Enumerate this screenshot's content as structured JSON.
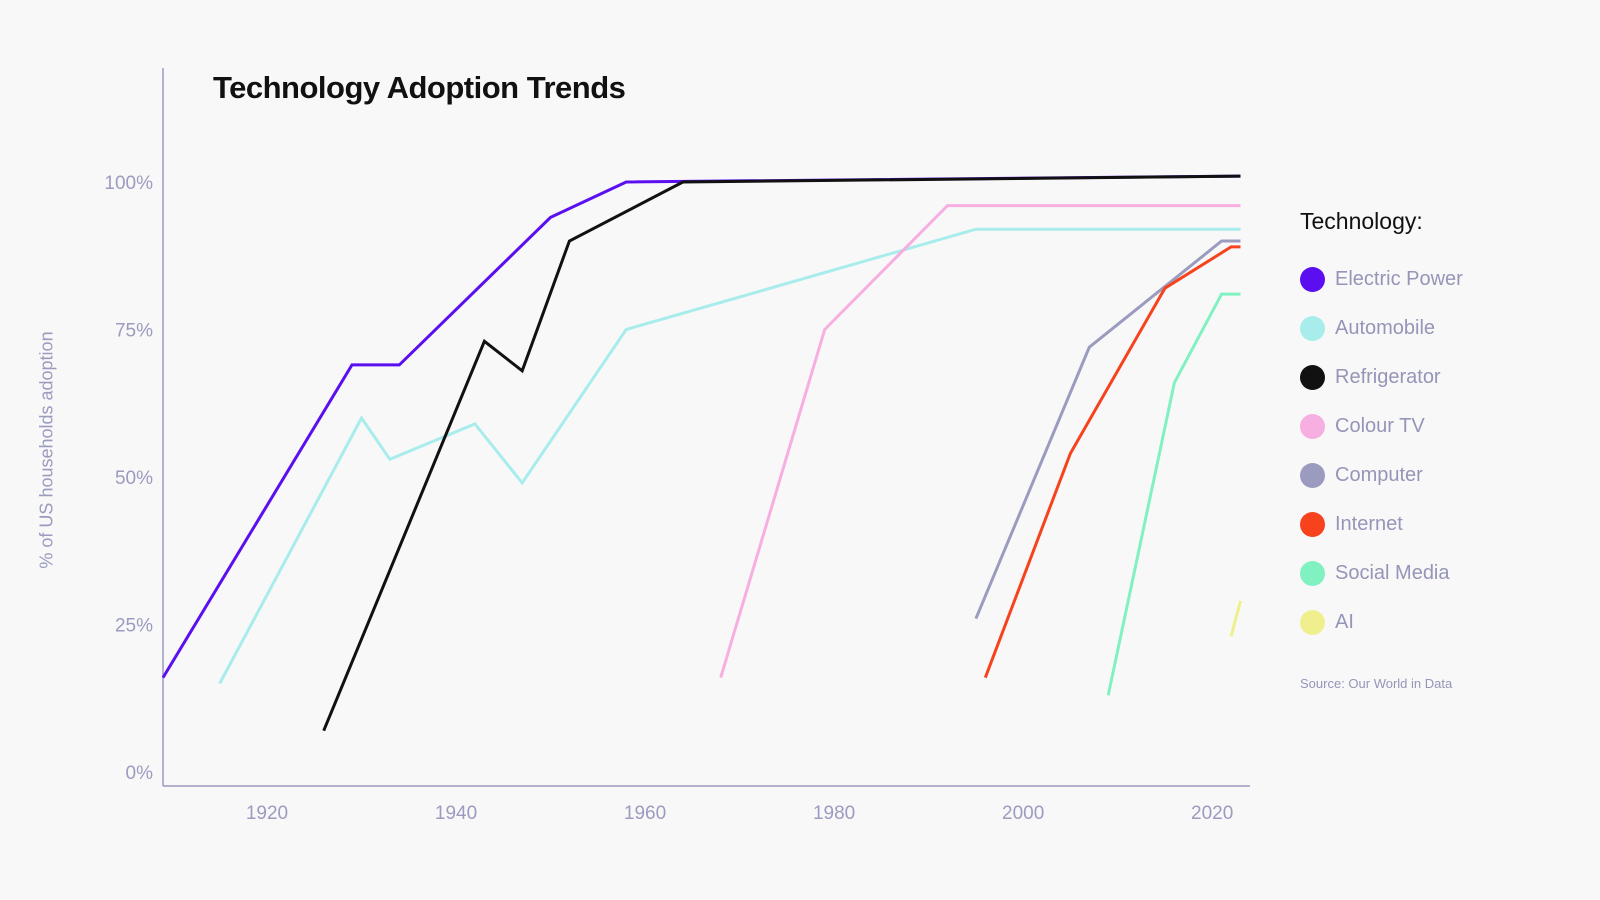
{
  "chart_data": {
    "type": "line",
    "title": "Technology Adoption Trends",
    "ylabel": "% of US households adoption",
    "xlabel": "",
    "xlim": [
      1909,
      2024
    ],
    "ylim": [
      0,
      102
    ],
    "x_ticks": [
      1920,
      1940,
      1960,
      1980,
      2000,
      2020
    ],
    "y_ticks": [
      {
        "value": 0,
        "label": "0%"
      },
      {
        "value": 25,
        "label": "25%"
      },
      {
        "value": 50,
        "label": "50%"
      },
      {
        "value": 75,
        "label": "75%"
      },
      {
        "value": 100,
        "label": "100%"
      }
    ],
    "grid": false,
    "legend_position": "right",
    "series": [
      {
        "name": "Electric Power",
        "color": "#5b0ff0",
        "x": [
          1909,
          1929,
          1934,
          1950,
          1958,
          2023
        ],
        "y": [
          16,
          69,
          69,
          94,
          100,
          101
        ]
      },
      {
        "name": "Automobile",
        "color": "#a8ecec",
        "x": [
          1915,
          1930,
          1933,
          1942,
          1947,
          1958,
          1995,
          2023
        ],
        "y": [
          15,
          60,
          53,
          59,
          49,
          75,
          92,
          92
        ]
      },
      {
        "name": "Refrigerator",
        "color": "#111111",
        "x": [
          1926,
          1943,
          1947,
          1952,
          1964,
          2023
        ],
        "y": [
          7,
          73,
          68,
          90,
          100,
          101
        ]
      },
      {
        "name": "Colour TV",
        "color": "#f7aee0",
        "x": [
          1968,
          1979,
          1992,
          2023
        ],
        "y": [
          16,
          75,
          96,
          96
        ]
      },
      {
        "name": "Computer",
        "color": "#9b9bbf",
        "x": [
          1995,
          2007,
          2021,
          2023
        ],
        "y": [
          26,
          72,
          90,
          90
        ]
      },
      {
        "name": "Internet",
        "color": "#f7431d",
        "x": [
          1996,
          2005,
          2015,
          2022,
          2023
        ],
        "y": [
          16,
          54,
          82,
          89,
          89
        ]
      },
      {
        "name": "Social Media",
        "color": "#82f1c2",
        "x": [
          2009,
          2016,
          2021,
          2023
        ],
        "y": [
          13,
          66,
          81,
          81
        ]
      },
      {
        "name": "AI",
        "color": "#eff08d",
        "x": [
          2022,
          2023
        ],
        "y": [
          23,
          29
        ]
      }
    ],
    "legend_title": "Technology:",
    "source": "Source: Our World in Data"
  }
}
